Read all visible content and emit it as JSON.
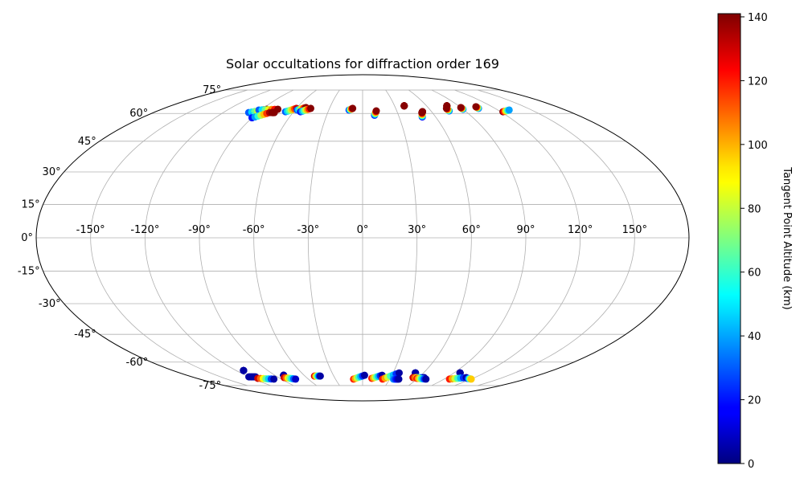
{
  "chart_data": {
    "type": "scatter",
    "projection": "mollweide",
    "title": "Solar occultations for diffraction order 169",
    "lon_ticks": [
      -150,
      -120,
      -90,
      -60,
      -30,
      0,
      30,
      60,
      90,
      120,
      150
    ],
    "lon_tick_labels": [
      "-150°",
      "-120°",
      "-90°",
      "-60°",
      "-30°",
      "0°",
      "30°",
      "60°",
      "90°",
      "120°",
      "150°"
    ],
    "lat_ticks": [
      75,
      60,
      45,
      30,
      15,
      0,
      -15,
      -30,
      -45,
      -60,
      -75
    ],
    "lat_tick_labels": [
      "75°",
      "60°",
      "45°",
      "30°",
      "15°",
      "0°",
      "-15°",
      "-30°",
      "-45°",
      "-60°",
      "-75°"
    ],
    "grid": true,
    "colorbar": {
      "label": "Tangent Point Altitude (km)",
      "colormap": "jet",
      "range": [
        0,
        141
      ],
      "ticks": [
        0,
        20,
        40,
        60,
        80,
        100,
        120,
        140
      ],
      "tick_labels": [
        "0",
        "20",
        "40",
        "60",
        "80",
        "100",
        "120",
        "140"
      ]
    },
    "tracks": [
      {
        "lon": [
          -98,
          -86
        ],
        "lat": [
          60.5,
          62.5
        ],
        "alt": [
          30,
          140
        ]
      },
      {
        "lon": [
          -91,
          -86
        ],
        "lat": [
          58.5,
          60.5
        ],
        "alt": [
          40,
          130
        ]
      },
      {
        "lon": [
          -92,
          -76
        ],
        "lat": [
          62.0,
          62.5
        ],
        "alt": [
          30,
          140
        ]
      },
      {
        "lon": [
          -90,
          -80
        ],
        "lat": [
          57.5,
          60.5
        ],
        "alt": [
          20,
          135
        ]
      },
      {
        "lon": [
          -78,
          -76
        ],
        "lat": [
          60.5,
          60.5
        ],
        "alt": [
          140,
          140
        ]
      },
      {
        "lon": [
          -67,
          -60
        ],
        "lat": [
          61.0,
          63.0
        ],
        "alt": [
          30,
          130
        ]
      },
      {
        "lon": [
          -58,
          -52
        ],
        "lat": [
          62.0,
          63.5
        ],
        "alt": [
          30,
          140
        ]
      },
      {
        "lon": [
          -54,
          -47
        ],
        "lat": [
          61.0,
          63.0
        ],
        "alt": [
          20,
          140
        ]
      },
      {
        "lon": [
          -12,
          -9
        ],
        "lat": [
          62.0,
          63.0
        ],
        "alt": [
          20,
          140
        ]
      },
      {
        "lon": [
          10,
          12
        ],
        "lat": [
          59.0,
          61.5
        ],
        "alt": [
          20,
          140
        ]
      },
      {
        "lon": [
          39,
          39
        ],
        "lat": [
          64.5,
          64.5
        ],
        "alt": [
          140,
          140
        ]
      },
      {
        "lon": [
          49,
          51
        ],
        "lat": [
          58.0,
          60.5
        ],
        "alt": [
          20,
          140
        ]
      },
      {
        "lon": [
          52,
          52
        ],
        "lat": [
          61.0,
          61.0
        ],
        "alt": [
          140,
          140
        ]
      },
      {
        "lon": [
          76,
          76
        ],
        "lat": [
          61.5,
          63.0
        ],
        "alt": [
          30,
          140
        ]
      },
      {
        "lon": [
          79,
          79
        ],
        "lat": [
          64.5,
          64.5
        ],
        "alt": [
          140,
          140
        ]
      },
      {
        "lon": [
          90,
          90
        ],
        "lat": [
          62.5,
          63.5
        ],
        "alt": [
          30,
          140
        ]
      },
      {
        "lon": [
          105,
          105
        ],
        "lat": [
          63.0,
          64.0
        ],
        "alt": [
          30,
          140
        ]
      },
      {
        "lon": [
          122,
          130
        ],
        "lat": [
          61.0,
          62.0
        ],
        "alt": [
          140,
          40
        ]
      },
      {
        "lon": [
          -113,
          -113
        ],
        "lat": [
          -65.0,
          -65.0
        ],
        "alt": [
          5,
          5
        ]
      },
      {
        "lon": [
          -120,
          -113
        ],
        "lat": [
          -69.0,
          -69.0
        ],
        "alt": [
          5,
          5
        ]
      },
      {
        "lon": [
          -114,
          -98
        ],
        "lat": [
          -70.0,
          -70.5
        ],
        "alt": [
          130,
          5
        ]
      },
      {
        "lon": [
          -81,
          -81
        ],
        "lat": [
          -68.0,
          -68.0
        ],
        "alt": [
          5,
          5
        ]
      },
      {
        "lon": [
          -84,
          -74
        ],
        "lat": [
          -69.5,
          -70.5
        ],
        "alt": [
          130,
          10
        ]
      },
      {
        "lon": [
          -50,
          -44
        ],
        "lat": [
          -68.5,
          -68.5
        ],
        "alt": [
          130,
          5
        ]
      },
      {
        "lon": [
          -10,
          2
        ],
        "lat": [
          -70.5,
          -68.0
        ],
        "alt": [
          120,
          5
        ]
      },
      {
        "lon": [
          10,
          20
        ],
        "lat": [
          -70.0,
          -68.0
        ],
        "alt": [
          120,
          5
        ]
      },
      {
        "lon": [
          22,
          36
        ],
        "lat": [
          -70.5,
          -66.5
        ],
        "alt": [
          120,
          5
        ]
      },
      {
        "lon": [
          34,
          40
        ],
        "lat": [
          -70.5,
          -70.5
        ],
        "alt": [
          40,
          5
        ]
      },
      {
        "lon": [
          52,
          52
        ],
        "lat": [
          -66.5,
          -66.5
        ],
        "alt": [
          5,
          5
        ]
      },
      {
        "lon": [
          54,
          66
        ],
        "lat": [
          -69.5,
          -69.5
        ],
        "alt": [
          130,
          5
        ]
      },
      {
        "lon": [
          59,
          70
        ],
        "lat": [
          -70.0,
          -70.5
        ],
        "alt": [
          120,
          5
        ]
      },
      {
        "lon": [
          96,
          96
        ],
        "lat": [
          -66.5,
          -66.5
        ],
        "alt": [
          5,
          5
        ]
      },
      {
        "lon": [
          96,
          111
        ],
        "lat": [
          -70.5,
          -69.5
        ],
        "alt": [
          120,
          5
        ]
      },
      {
        "lon": [
          114,
          120
        ],
        "lat": [
          -70.0,
          -70.5
        ],
        "alt": [
          5,
          95
        ]
      }
    ]
  }
}
